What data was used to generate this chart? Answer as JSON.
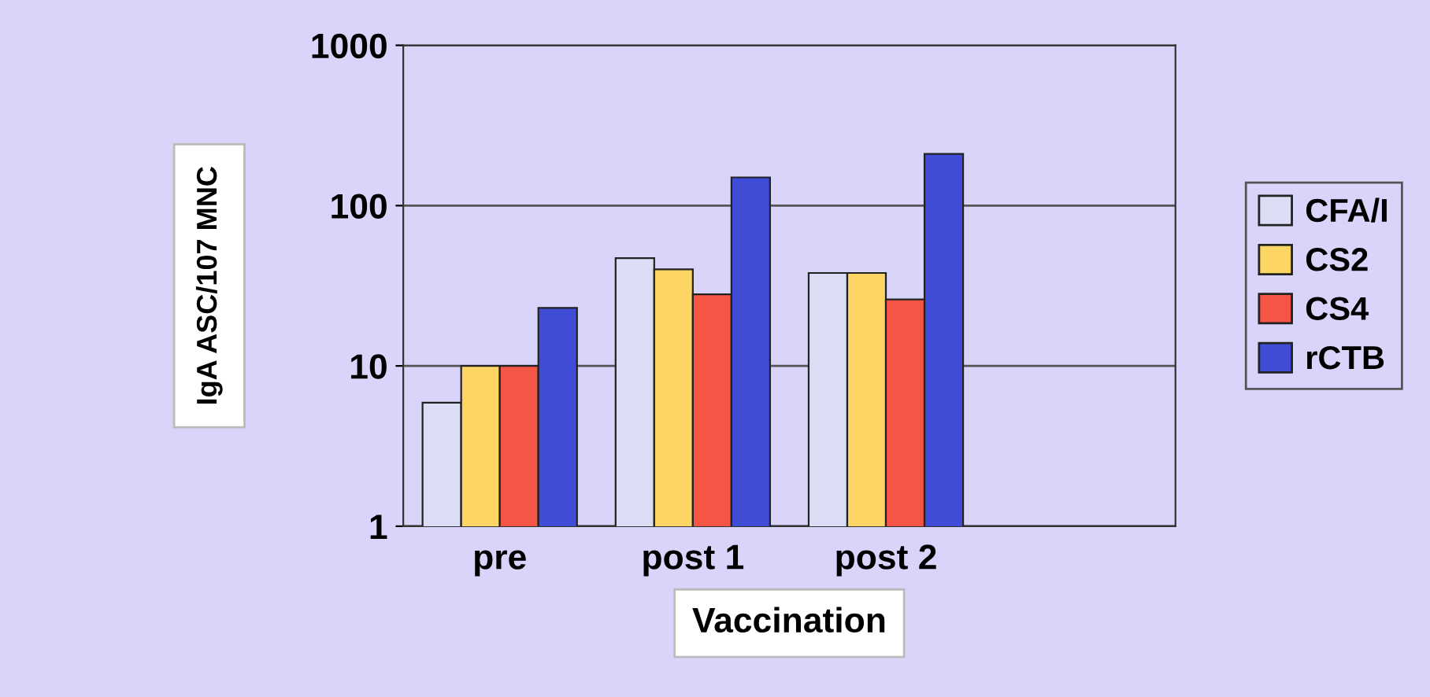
{
  "chart_data": {
    "type": "bar",
    "xlabel": "Vaccination",
    "ylabel": "IgA ASC/107 MNC",
    "categories": [
      "pre",
      "post 1",
      "post 2",
      null
    ],
    "series": [
      {
        "name": "CFA/I",
        "color": "#dcdcf5",
        "values": [
          5.9,
          47,
          38,
          null
        ]
      },
      {
        "name": "CS2",
        "color": "#fdd565",
        "values": [
          10,
          40,
          38,
          null
        ]
      },
      {
        "name": "CS4",
        "color": "#f55545",
        "values": [
          10,
          28,
          26,
          null
        ]
      },
      {
        "name": "rCTB",
        "color": "#3f4cd6",
        "values": [
          23,
          150,
          210,
          null
        ]
      }
    ],
    "log": "y",
    "ylim": [
      1,
      1000
    ],
    "yticks": [
      1,
      10,
      100,
      1000
    ],
    "grid": "y",
    "legend": "right"
  }
}
